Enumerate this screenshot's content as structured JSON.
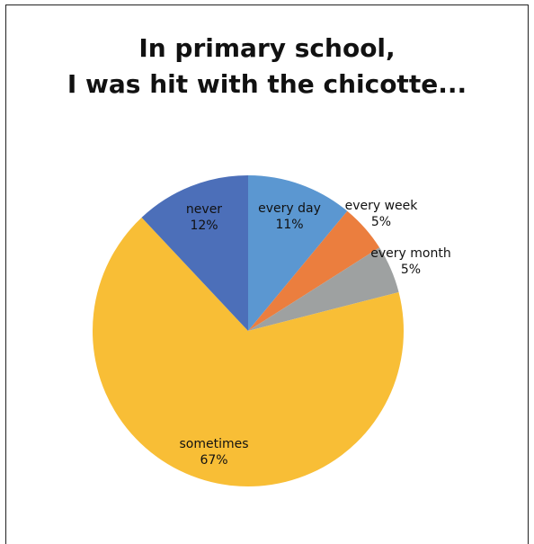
{
  "chart_data": {
    "type": "pie",
    "title_lines": [
      "In primary school,",
      "I was hit with the chicotte..."
    ],
    "slices": [
      {
        "label": "every day",
        "value": 11,
        "pct": "11%",
        "color": "#5B97D1"
      },
      {
        "label": "every week",
        "value": 5,
        "pct": "5%",
        "color": "#EB7E3E"
      },
      {
        "label": "every month",
        "value": 5,
        "pct": "5%",
        "color": "#9EA1A1"
      },
      {
        "label": "sometimes",
        "value": 67,
        "pct": "67%",
        "color": "#F8BE36"
      },
      {
        "label": "never",
        "value": 12,
        "pct": "12%",
        "color": "#4C6FB9"
      }
    ],
    "legend": false
  }
}
